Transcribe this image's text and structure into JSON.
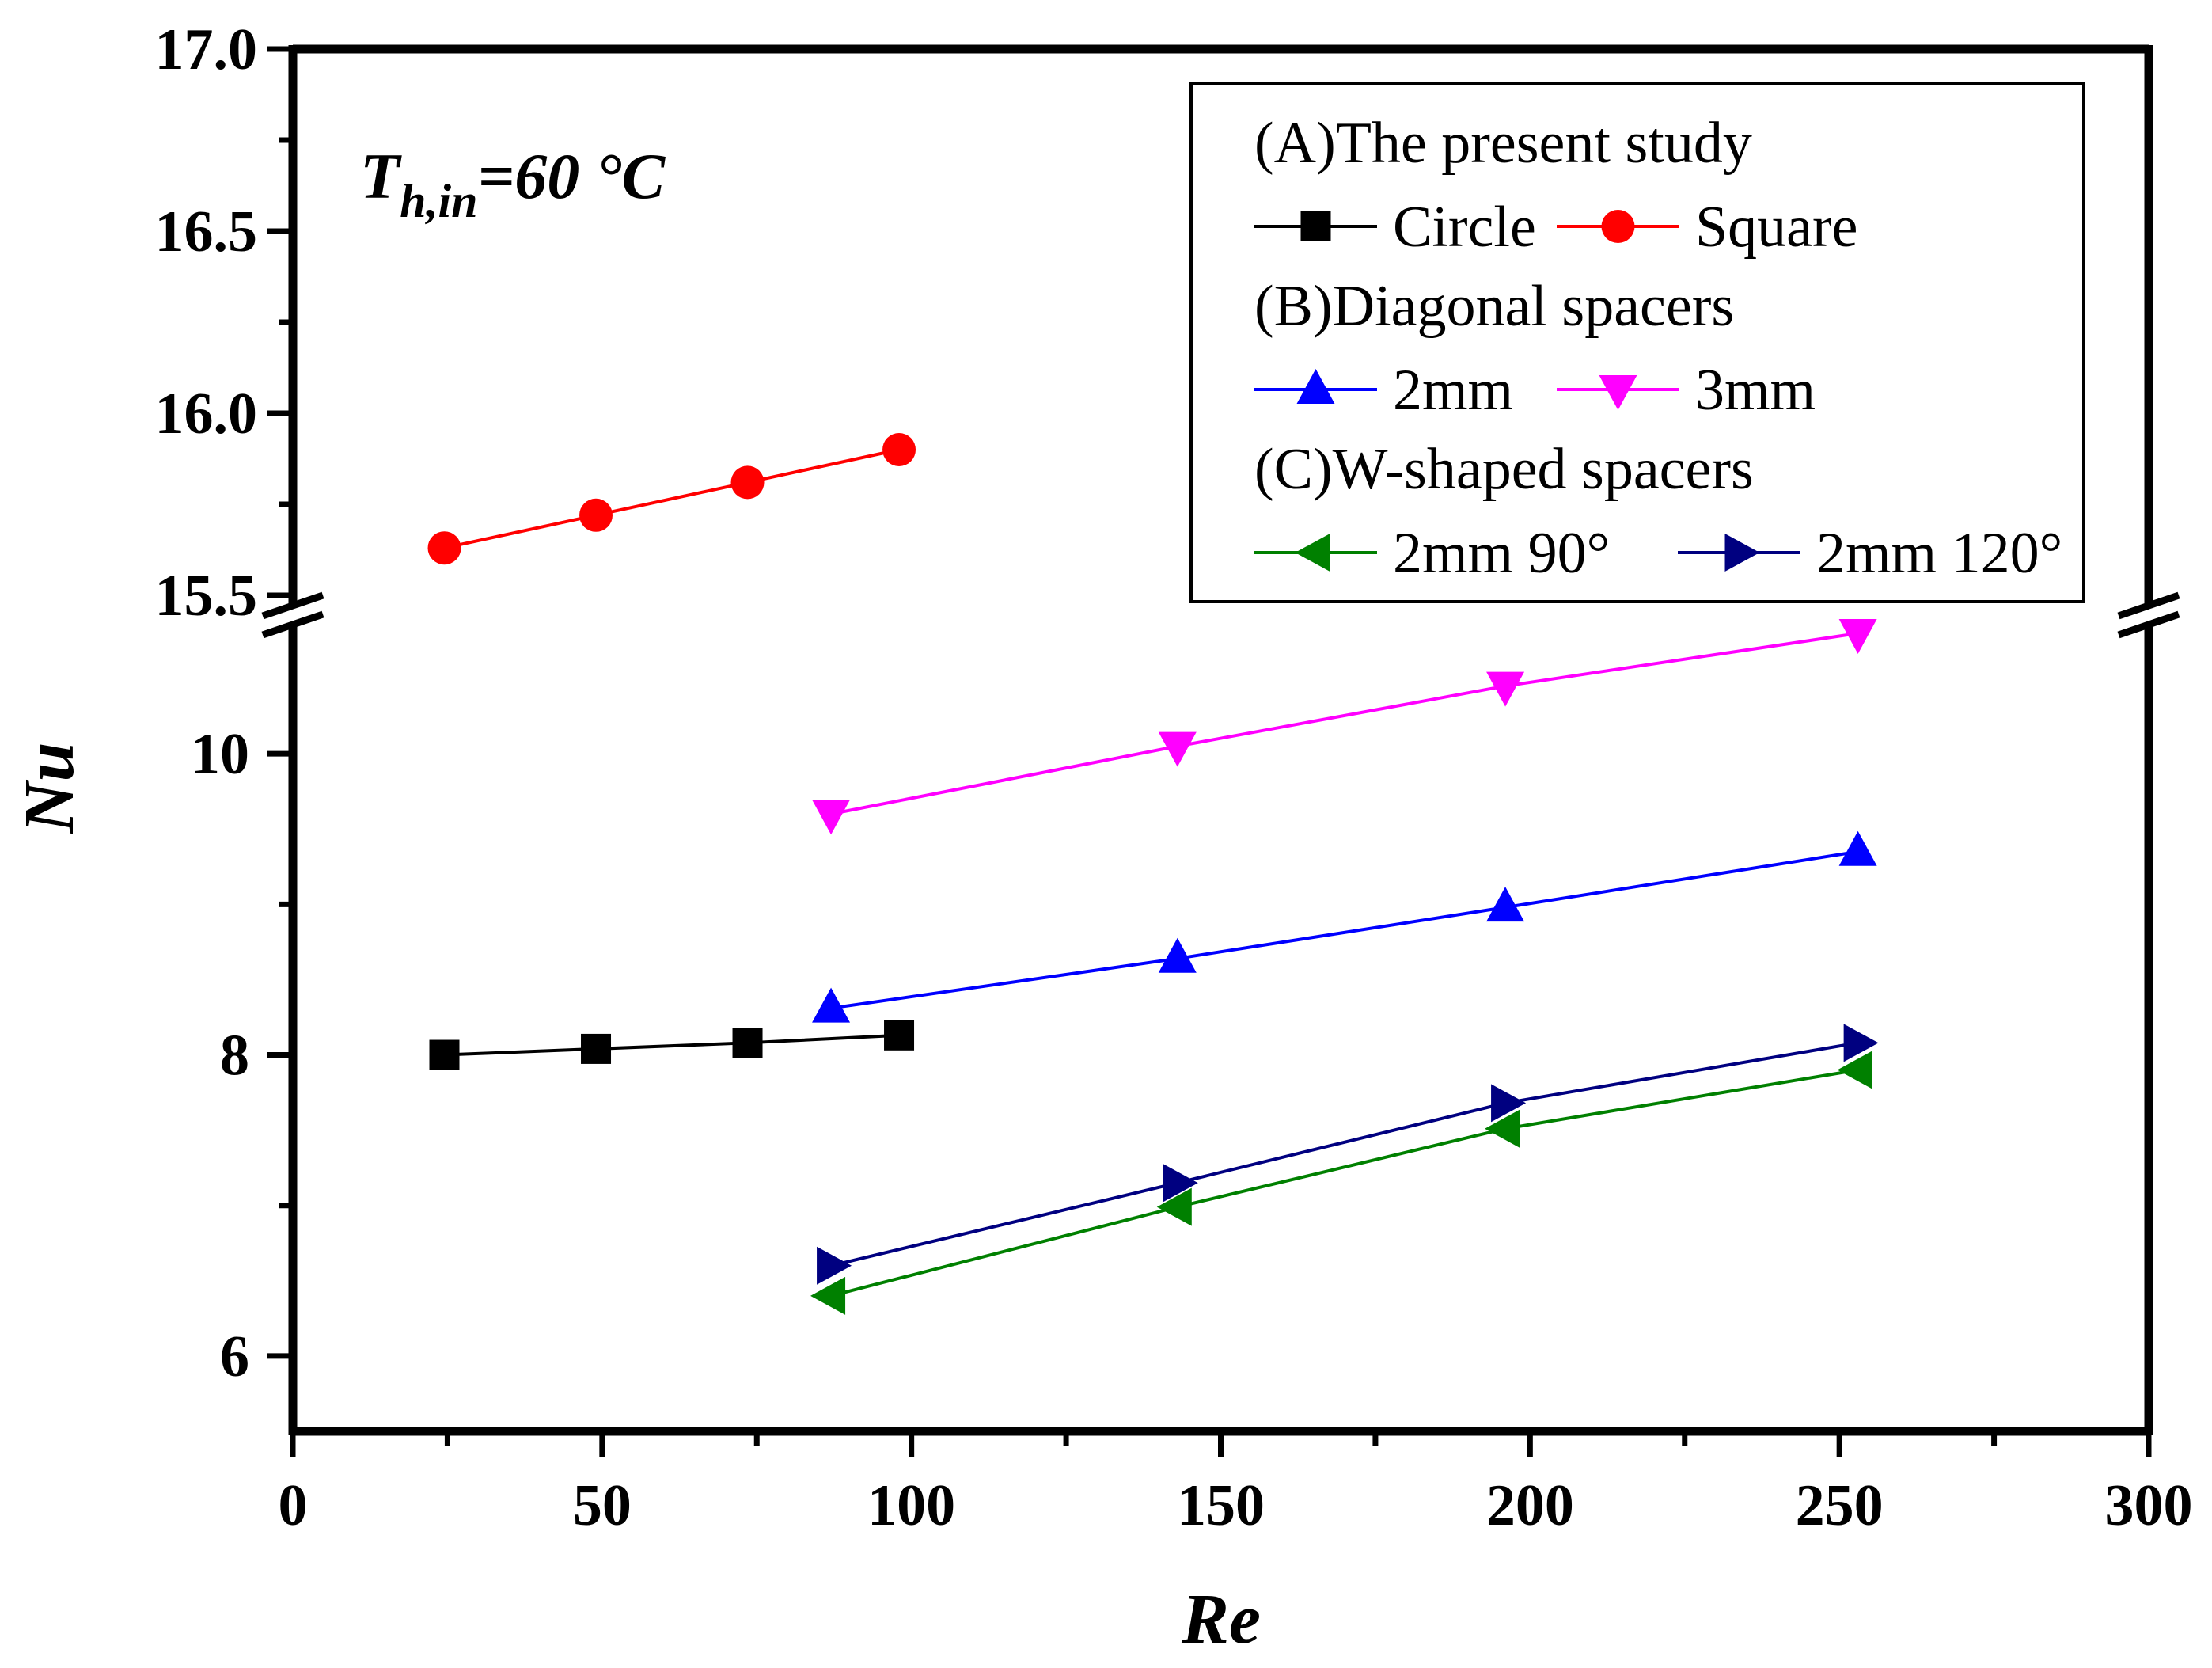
{
  "chart_data": {
    "type": "line",
    "title": "",
    "annotation": {
      "main": "T",
      "subscript": "h,in",
      "value": "=60 °C"
    },
    "xlabel": "Re",
    "ylabel": "Nu",
    "xlim": [
      0,
      300
    ],
    "x_ticks": [
      "0",
      "50",
      "100",
      "150",
      "200",
      "250",
      "300"
    ],
    "y_axis_break": true,
    "ylim_lower": [
      5.5,
      10.8
    ],
    "ylim_upper": [
      15.5,
      17.0
    ],
    "y_ticks_lower": [
      "6",
      "8",
      "10"
    ],
    "y_ticks_upper": [
      "15.5",
      "16.0",
      "16.5",
      "17.0"
    ],
    "legend_position": "top-right",
    "legend": {
      "groups": [
        {
          "heading": "(A)The present study",
          "entries": [
            "Circle",
            "Square"
          ]
        },
        {
          "heading": "(B)Diagonal spacers",
          "entries": [
            "2mm",
            "3mm"
          ]
        },
        {
          "heading": "(C)W-shaped spacers",
          "entries": [
            "2mm 90°",
            "2mm 120°"
          ]
        }
      ]
    },
    "series": [
      {
        "name": "Circle",
        "color": "#000000",
        "marker": "square",
        "x": [
          24.5,
          49,
          73.5,
          98
        ],
        "y": [
          8.0,
          8.04,
          8.08,
          8.13
        ]
      },
      {
        "name": "Square",
        "color": "#ff0000",
        "marker": "circle",
        "x": [
          24.5,
          49,
          73.5,
          98
        ],
        "y": [
          15.63,
          15.72,
          15.81,
          15.9
        ]
      },
      {
        "name": "2mm",
        "color": "#0000ff",
        "marker": "triangle-up",
        "x": [
          87,
          143,
          196,
          253
        ],
        "y": [
          8.31,
          8.64,
          8.98,
          9.35
        ]
      },
      {
        "name": "3mm",
        "color": "#ff00ff",
        "marker": "triangle-down",
        "x": [
          87,
          143,
          196,
          253
        ],
        "y": [
          9.6,
          10.05,
          10.45,
          10.8
        ]
      },
      {
        "name": "2mm 90°",
        "color": "#008000",
        "marker": "triangle-left",
        "x": [
          87,
          143,
          196,
          253
        ],
        "y": [
          6.4,
          6.99,
          7.51,
          7.9
        ]
      },
      {
        "name": "2mm 120°",
        "color": "#000080",
        "marker": "triangle-right",
        "x": [
          87,
          143,
          196,
          253
        ],
        "y": [
          6.6,
          7.15,
          7.68,
          8.08
        ]
      }
    ]
  }
}
